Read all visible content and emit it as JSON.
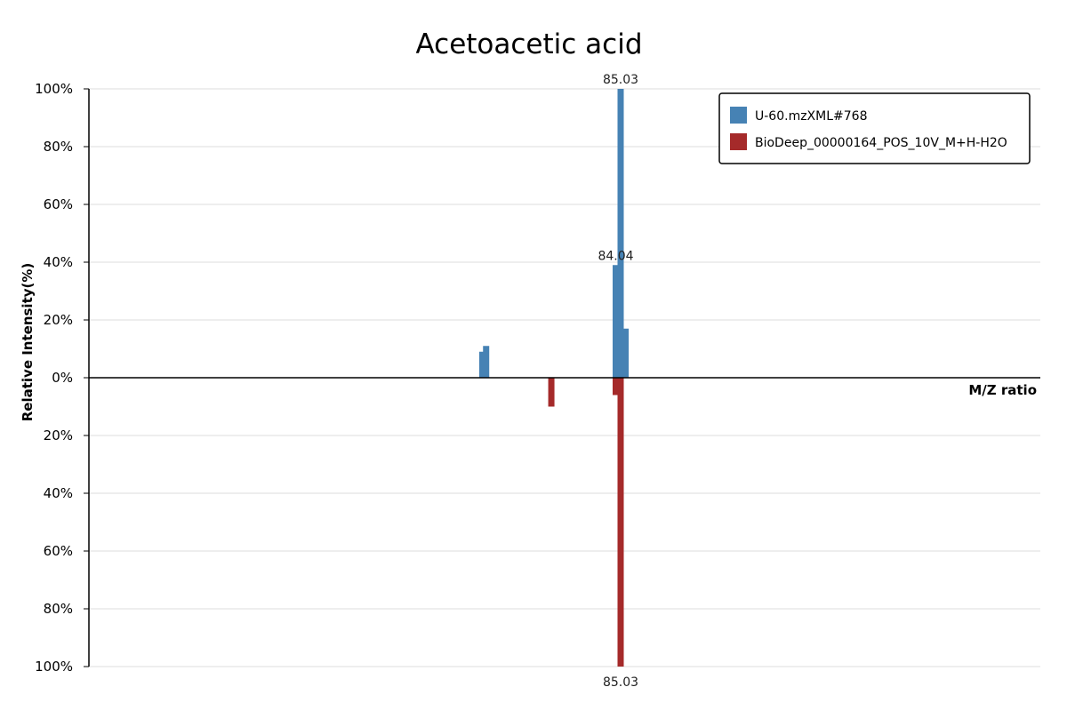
{
  "chart_data": {
    "type": "bar",
    "title": "Acetoacetic acid",
    "xlabel": "M/Z ratio",
    "ylabel": "Relative Intensity(%)",
    "ylim": [
      -100,
      100
    ],
    "y_ticks": [
      "100%",
      "80%",
      "60%",
      "40%",
      "20%",
      "0%",
      "20%",
      "40%",
      "60%",
      "80%",
      "100%"
    ],
    "legend_position": "top-right",
    "grid": true,
    "series": [
      {
        "name": "U-60.mzXML#768",
        "color": "#4682b4",
        "direction": "up",
        "peaks": [
          {
            "mz": 57.03,
            "intensity": 9
          },
          {
            "mz": 57.8,
            "intensity": 11
          },
          {
            "mz": 84.04,
            "intensity": 39,
            "label": "84.04"
          },
          {
            "mz": 85.03,
            "intensity": 100,
            "label": "85.03"
          },
          {
            "mz": 86.03,
            "intensity": 17
          }
        ]
      },
      {
        "name": "BioDeep_00000164_POS_10V_M+H-H2O",
        "color": "#a52a2a",
        "direction": "down",
        "peaks": [
          {
            "mz": 71.0,
            "intensity": 10
          },
          {
            "mz": 84.04,
            "intensity": 6
          },
          {
            "mz": 85.03,
            "intensity": 100,
            "label": "85.03"
          }
        ]
      }
    ]
  }
}
